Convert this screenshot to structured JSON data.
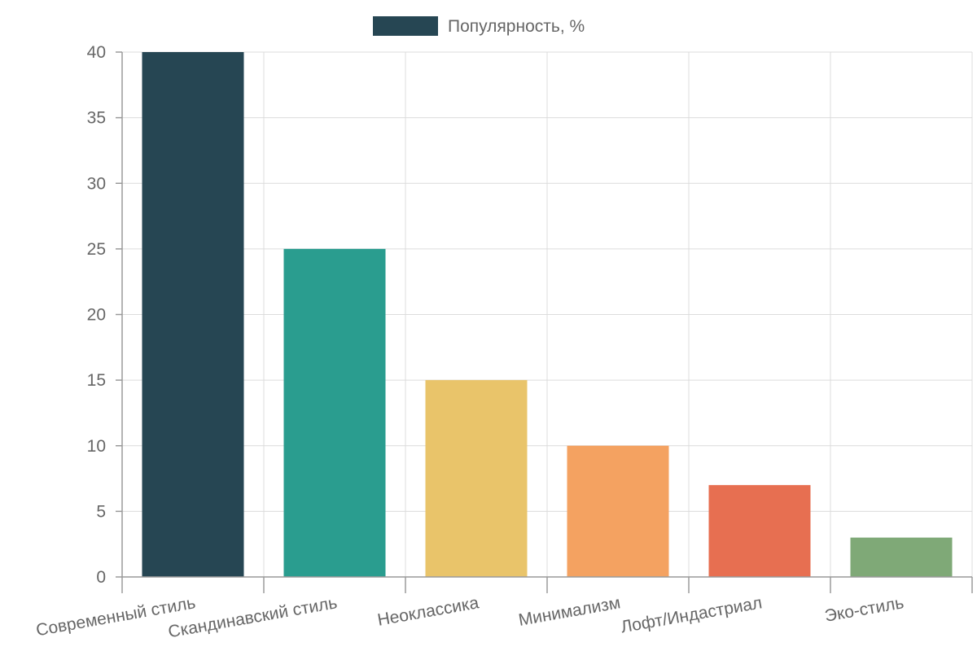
{
  "chart_data": {
    "type": "bar",
    "categories": [
      "Современный стиль",
      "Скандинавский стиль",
      "Неоклассика",
      "Минимализм",
      "Лофт/Индастриал",
      "Эко-стиль"
    ],
    "series": [
      {
        "name": "Популярность, %",
        "values": [
          40,
          25,
          15,
          10,
          7,
          3
        ]
      }
    ],
    "colors": [
      "#264653",
      "#2a9d8f",
      "#e9c46a",
      "#f4a261",
      "#e76f51",
      "#7fa977"
    ],
    "legend_color": "#264653",
    "ylim": [
      0,
      40
    ],
    "yticks": [
      0,
      5,
      10,
      15,
      20,
      25,
      30,
      35,
      40
    ],
    "grid": true,
    "legend_position": "top"
  }
}
